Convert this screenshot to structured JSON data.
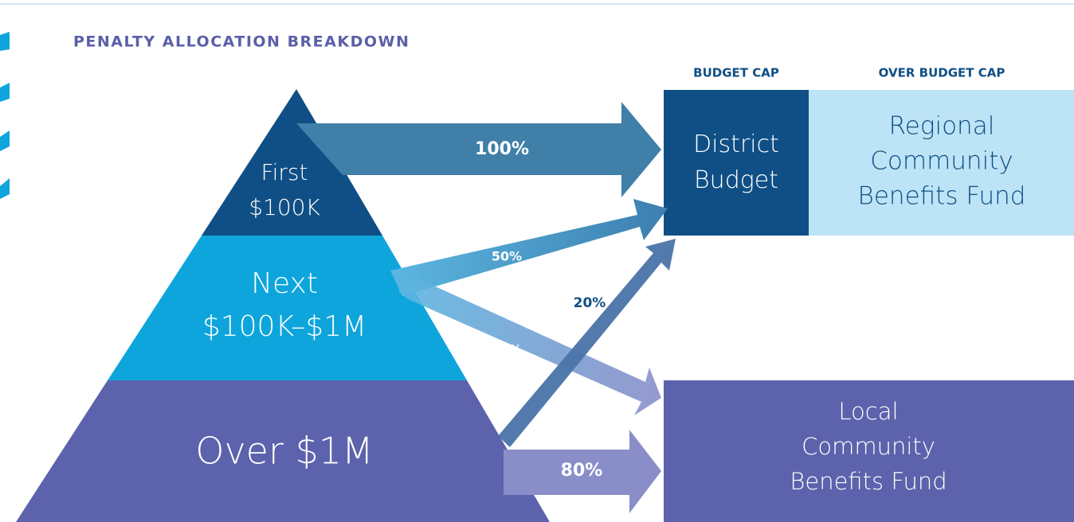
{
  "title": "PENALTY ALLOCATION BREAKDOWN",
  "column_headers": [
    "BUDGET CAP",
    "OVER BUDGET CAP"
  ],
  "pyramid": [
    {
      "lines": [
        "First",
        "$100K"
      ]
    },
    {
      "lines": [
        "Next",
        "$100K–$1M"
      ]
    },
    {
      "lines": [
        "Over $1M"
      ]
    }
  ],
  "destinations": [
    {
      "lines": [
        "District",
        "Budget"
      ]
    },
    {
      "lines": [
        "Regional",
        "Community",
        "Benefits Fund"
      ]
    },
    {
      "lines": [
        "Local",
        "Community",
        "Benefits Fund"
      ]
    }
  ],
  "flows": [
    {
      "label": "100%"
    },
    {
      "label": "50%"
    },
    {
      "label": "50%"
    },
    {
      "label": "20%"
    },
    {
      "label": "80%"
    }
  ]
}
